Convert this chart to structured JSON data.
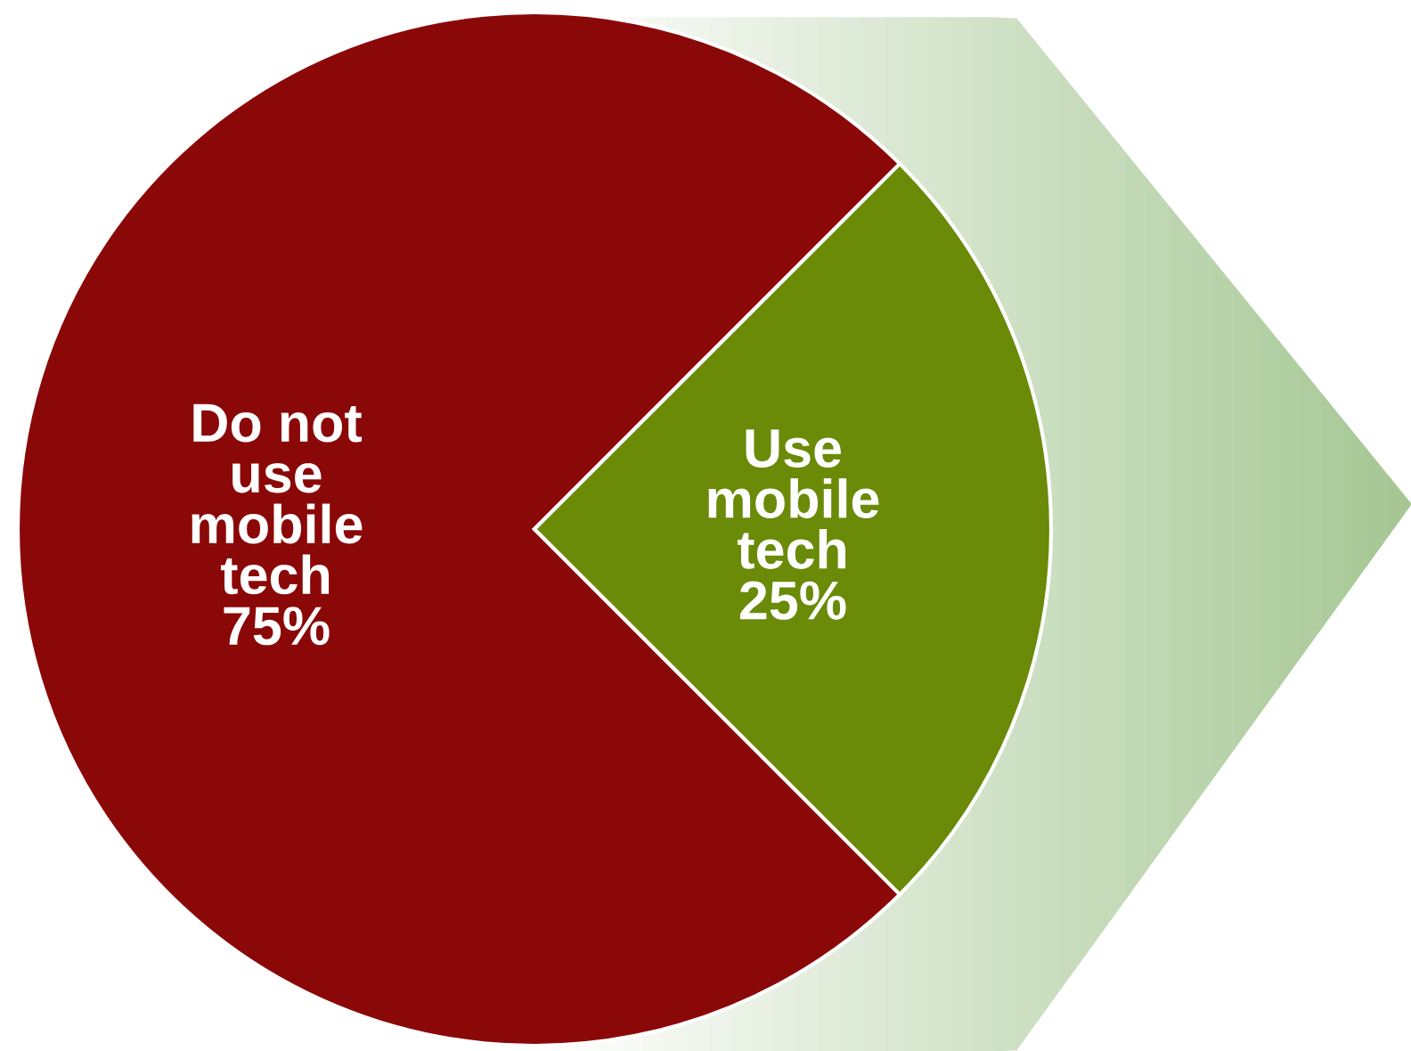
{
  "chart_data": {
    "type": "pie",
    "categories": [
      "Do not\nuse\nmobile\ntech",
      "Use\nmobile\ntech"
    ],
    "values": [
      75,
      25
    ],
    "value_labels": [
      "75%",
      "25%"
    ],
    "colors": [
      "#8b0808",
      "#6a8a08"
    ]
  }
}
